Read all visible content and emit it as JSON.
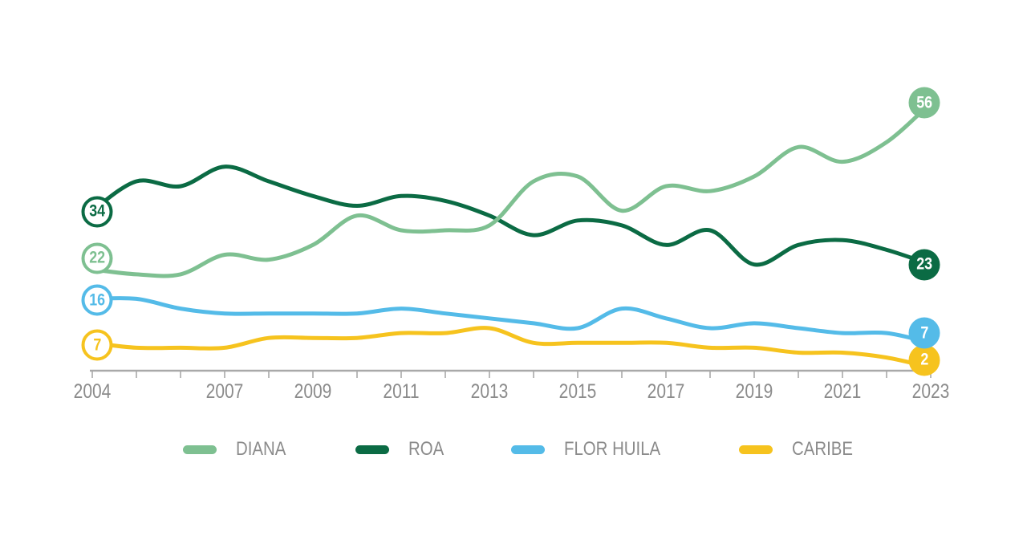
{
  "chart_data": {
    "type": "line",
    "title": "",
    "xlabel": "",
    "ylabel": "",
    "grid": false,
    "legend_position": "bottom",
    "x_range": [
      2004,
      2023
    ],
    "years": [
      2004,
      2005,
      2006,
      2007,
      2008,
      2009,
      2010,
      2011,
      2012,
      2013,
      2014,
      2015,
      2016,
      2017,
      2018,
      2019,
      2020,
      2021,
      2022,
      2023
    ],
    "x_tick_labels": [
      "2004",
      "2007",
      "2009",
      "2011",
      "2013",
      "2015",
      "2017",
      "2019",
      "2021",
      "2023"
    ],
    "axis_color": "#A9A9A9",
    "tick_label_color": "#8B8B8B",
    "series": [
      {
        "name": "DIANA",
        "color": "#7EC091",
        "start_badge": "22",
        "end_badge": "56",
        "values": [
          22,
          21,
          21,
          25,
          24,
          27,
          33,
          30,
          30,
          31,
          40,
          41,
          34,
          39,
          38,
          41,
          47,
          44,
          48,
          56
        ]
      },
      {
        "name": "ROA",
        "color": "#0B6B44",
        "start_badge": "34",
        "end_badge": "23",
        "values": [
          34,
          40,
          39,
          43,
          40,
          37,
          35,
          37,
          36,
          33,
          29,
          32,
          31,
          27,
          30,
          23,
          27,
          28,
          26,
          23
        ]
      },
      {
        "name": "FLOR HUILA",
        "color": "#54BBE8",
        "start_badge": "16",
        "end_badge": "7",
        "values": [
          16,
          16,
          14,
          13,
          13,
          13,
          13,
          14,
          13,
          12,
          11,
          10,
          14,
          12,
          10,
          11,
          10,
          9,
          9,
          7
        ]
      },
      {
        "name": "CARIBE",
        "color": "#F6C31E",
        "start_badge": "7",
        "end_badge": "2",
        "values": [
          7,
          6,
          6,
          6,
          8,
          8,
          8,
          9,
          9,
          10,
          7,
          7,
          7,
          7,
          6,
          6,
          5,
          5,
          4,
          2
        ]
      }
    ],
    "legend": [
      "DIANA",
      "ROA",
      "FLOR HUILA",
      "CARIBE"
    ]
  }
}
